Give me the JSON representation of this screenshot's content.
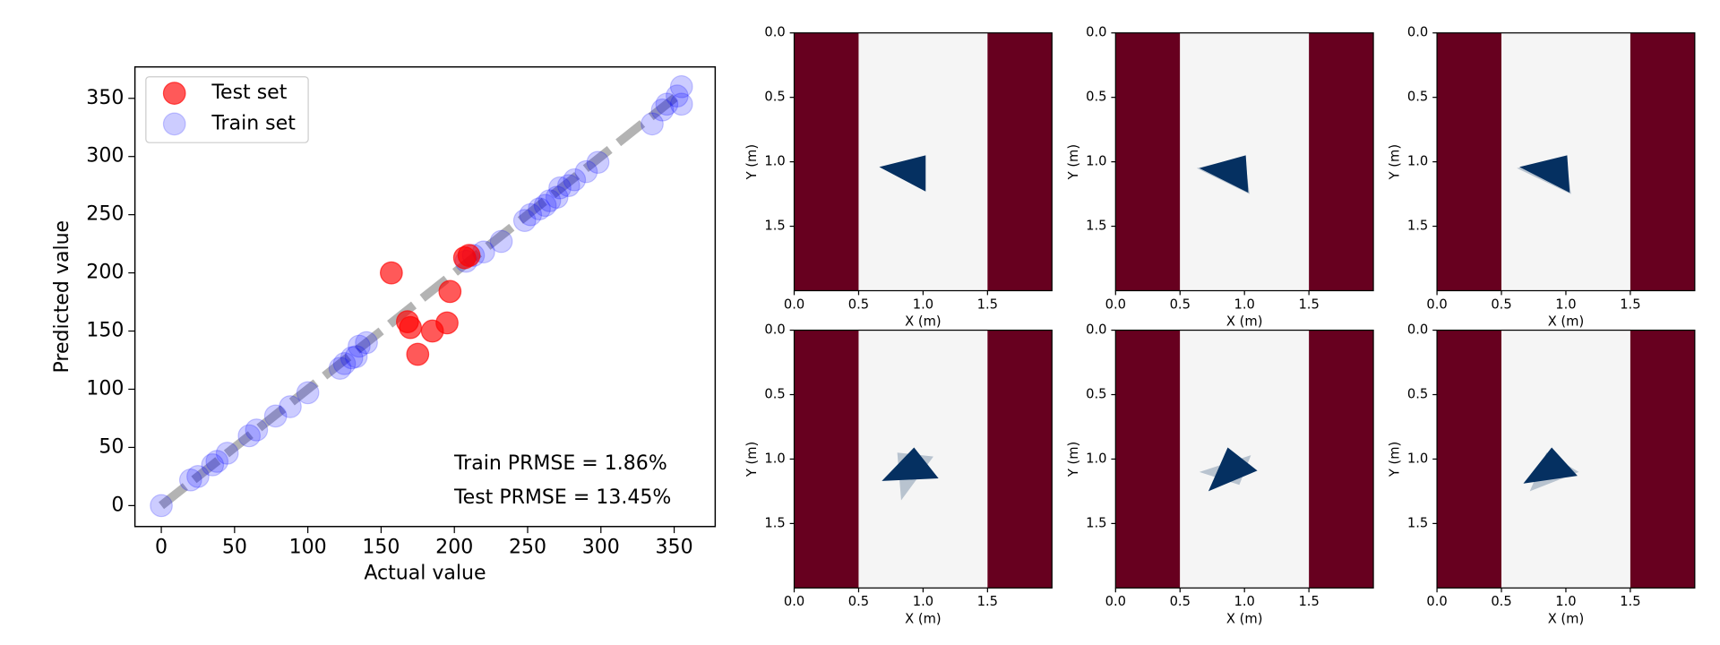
{
  "chart_data": [
    {
      "type": "scatter",
      "xlabel": "Actual value",
      "ylabel": "Predicted value",
      "xlim": [
        -18,
        378
      ],
      "ylim": [
        -18,
        377
      ],
      "xticks": [
        0,
        50,
        100,
        150,
        200,
        250,
        300,
        350
      ],
      "yticks": [
        0,
        50,
        100,
        150,
        200,
        250,
        300,
        350
      ],
      "legend": "upper left",
      "reference_line": {
        "x": [
          0,
          355
        ],
        "y": [
          0,
          355
        ],
        "color": "gray"
      },
      "series": [
        {
          "name": "Test set",
          "color": "red",
          "x": [
            157,
            168,
            170,
            175,
            185,
            195,
            197,
            207,
            210
          ],
          "values": [
            200,
            158,
            153,
            130,
            150,
            157,
            184,
            213,
            215
          ]
        },
        {
          "name": "Train set",
          "color": "blue",
          "x": [
            0,
            20,
            25,
            35,
            38,
            45,
            60,
            65,
            78,
            88,
            100,
            122,
            125,
            130,
            133,
            135,
            140,
            208,
            213,
            220,
            232,
            248,
            252,
            258,
            262,
            265,
            270,
            272,
            278,
            282,
            290,
            298,
            335,
            342,
            345,
            355,
            355,
            352
          ],
          "values": [
            0,
            22,
            25,
            35,
            38,
            45,
            60,
            65,
            77,
            85,
            97,
            118,
            122,
            127,
            128,
            137,
            140,
            210,
            215,
            218,
            227,
            245,
            250,
            255,
            258,
            262,
            265,
            273,
            275,
            280,
            287,
            295,
            328,
            340,
            345,
            345,
            360,
            352
          ]
        }
      ],
      "annotations": [
        "Train PRMSE = 1.86%",
        "Test PRMSE = 13.45%"
      ]
    },
    {
      "type": "image",
      "xlabel": "X (m)",
      "ylabel": "Y (m)",
      "xlim": [
        0,
        2
      ],
      "ylim": [
        2,
        0
      ],
      "xticks": [
        {
          "value": 0,
          "label": "0.0"
        },
        {
          "value": 0.5,
          "label": "0.5"
        },
        {
          "value": 1,
          "label": "1.0"
        },
        {
          "value": 1.5,
          "label": "1.5"
        }
      ],
      "yticks": [
        {
          "value": 0,
          "label": "0.0"
        },
        {
          "value": 0.5,
          "label": "0.5"
        },
        {
          "value": 1,
          "label": "1.0"
        },
        {
          "value": 1.5,
          "label": "1.5"
        }
      ],
      "bands": [
        {
          "x": [
            0,
            0.5
          ],
          "color": "#67001f"
        },
        {
          "x": [
            0.5,
            1.5
          ],
          "color": "#f5f5f5"
        },
        {
          "x": [
            1.5,
            2
          ],
          "color": "#67001f"
        }
      ],
      "shapes": [
        {
          "x": [
            0.66,
            1.02,
            1.02
          ],
          "y": [
            1.04,
            0.95,
            1.23
          ],
          "color": "#053061",
          "alpha": 1
        }
      ]
    },
    {
      "type": "image",
      "xlabel": "X (m)",
      "ylabel": "Y (m)",
      "xlim": [
        0,
        2
      ],
      "ylim": [
        2,
        0
      ],
      "xticks": [
        {
          "value": 0,
          "label": "0.0"
        },
        {
          "value": 0.5,
          "label": "0.5"
        },
        {
          "value": 1,
          "label": "1.0"
        },
        {
          "value": 1.5,
          "label": "1.5"
        }
      ],
      "yticks": [
        {
          "value": 0,
          "label": "0.0"
        },
        {
          "value": 0.5,
          "label": "0.5"
        },
        {
          "value": 1,
          "label": "1.0"
        },
        {
          "value": 1.5,
          "label": "1.5"
        }
      ],
      "bands": [
        {
          "x": [
            0,
            0.5
          ],
          "color": "#67001f"
        },
        {
          "x": [
            0.5,
            1.5
          ],
          "color": "#f5f5f5"
        },
        {
          "x": [
            1.5,
            2
          ],
          "color": "#67001f"
        }
      ],
      "shapes": [
        {
          "x": [
            0.63,
            1.0,
            1.04
          ],
          "y": [
            1.05,
            0.96,
            1.25
          ],
          "color": "#053061",
          "alpha": 0.25
        },
        {
          "x": [
            0.65,
            1.01,
            1.03
          ],
          "y": [
            1.05,
            0.95,
            1.24
          ],
          "color": "#053061",
          "alpha": 1
        }
      ]
    },
    {
      "type": "image",
      "xlabel": "X (m)",
      "ylabel": "Y (m)",
      "xlim": [
        0,
        2
      ],
      "ylim": [
        2,
        0
      ],
      "xticks": [
        {
          "value": 0,
          "label": "0.0"
        },
        {
          "value": 0.5,
          "label": "0.5"
        },
        {
          "value": 1,
          "label": "1.0"
        },
        {
          "value": 1.5,
          "label": "1.5"
        }
      ],
      "yticks": [
        {
          "value": 0,
          "label": "0.0"
        },
        {
          "value": 0.5,
          "label": "0.5"
        },
        {
          "value": 1,
          "label": "1.0"
        },
        {
          "value": 1.5,
          "label": "1.5"
        }
      ],
      "bands": [
        {
          "x": [
            0,
            0.5
          ],
          "color": "#67001f"
        },
        {
          "x": [
            0.5,
            1.5
          ],
          "color": "#f5f5f5"
        },
        {
          "x": [
            1.5,
            2
          ],
          "color": "#67001f"
        }
      ],
      "shapes": [
        {
          "x": [
            0.62,
            1.0,
            1.04
          ],
          "y": [
            1.05,
            0.96,
            1.25
          ],
          "color": "#053061",
          "alpha": 0.25
        },
        {
          "x": [
            0.64,
            1.01,
            1.03
          ],
          "y": [
            1.04,
            0.95,
            1.24
          ],
          "color": "#053061",
          "alpha": 1
        }
      ]
    },
    {
      "type": "image",
      "xlabel": "X (m)",
      "ylabel": "Y (m)",
      "xlim": [
        0,
        2
      ],
      "ylim": [
        2,
        0
      ],
      "xticks": [
        {
          "value": 0,
          "label": "0.0"
        },
        {
          "value": 0.5,
          "label": "0.5"
        },
        {
          "value": 1,
          "label": "1.0"
        },
        {
          "value": 1.5,
          "label": "1.5"
        }
      ],
      "yticks": [
        {
          "value": 0,
          "label": "0.0"
        },
        {
          "value": 0.5,
          "label": "0.5"
        },
        {
          "value": 1,
          "label": "1.0"
        },
        {
          "value": 1.5,
          "label": "1.5"
        }
      ],
      "bands": [
        {
          "x": [
            0,
            0.5
          ],
          "color": "#67001f"
        },
        {
          "x": [
            0.5,
            1.5
          ],
          "color": "#f5f5f5"
        },
        {
          "x": [
            1.5,
            2
          ],
          "color": "#67001f"
        }
      ],
      "shapes": [
        {
          "x": [
            0.83,
            0.8,
            1.08
          ],
          "y": [
            1.32,
            0.95,
            0.98
          ],
          "color": "#053061",
          "alpha": 0.25
        },
        {
          "x": [
            0.68,
            0.93,
            1.12
          ],
          "y": [
            1.17,
            0.91,
            1.15
          ],
          "color": "#053061",
          "alpha": 1
        }
      ]
    },
    {
      "type": "image",
      "xlabel": "X (m)",
      "ylabel": "Y (m)",
      "xlim": [
        0,
        2
      ],
      "ylim": [
        2,
        0
      ],
      "xticks": [
        {
          "value": 0,
          "label": "0.0"
        },
        {
          "value": 0.5,
          "label": "0.5"
        },
        {
          "value": 1,
          "label": "1.0"
        },
        {
          "value": 1.5,
          "label": "1.5"
        }
      ],
      "yticks": [
        {
          "value": 0,
          "label": "0.0"
        },
        {
          "value": 0.5,
          "label": "0.5"
        },
        {
          "value": 1,
          "label": "1.0"
        },
        {
          "value": 1.5,
          "label": "1.5"
        }
      ],
      "bands": [
        {
          "x": [
            0,
            0.5
          ],
          "color": "#67001f"
        },
        {
          "x": [
            0.5,
            1.5
          ],
          "color": "#f5f5f5"
        },
        {
          "x": [
            1.5,
            2
          ],
          "color": "#67001f"
        }
      ],
      "shapes": [
        {
          "x": [
            0.65,
            1.05,
            0.96
          ],
          "y": [
            1.1,
            0.97,
            1.2
          ],
          "color": "#053061",
          "alpha": 0.25
        },
        {
          "x": [
            0.72,
            0.87,
            1.1
          ],
          "y": [
            1.25,
            0.91,
            1.09
          ],
          "color": "#053061",
          "alpha": 1
        }
      ]
    },
    {
      "type": "image",
      "xlabel": "X (m)",
      "ylabel": "Y (m)",
      "xlim": [
        0,
        2
      ],
      "ylim": [
        2,
        0
      ],
      "xticks": [
        {
          "value": 0,
          "label": "0.0"
        },
        {
          "value": 0.5,
          "label": "0.5"
        },
        {
          "value": 1,
          "label": "1.0"
        },
        {
          "value": 1.5,
          "label": "1.5"
        }
      ],
      "yticks": [
        {
          "value": 0,
          "label": "0.0"
        },
        {
          "value": 0.5,
          "label": "0.5"
        },
        {
          "value": 1,
          "label": "1.0"
        },
        {
          "value": 1.5,
          "label": "1.5"
        }
      ],
      "bands": [
        {
          "x": [
            0,
            0.5
          ],
          "color": "#67001f"
        },
        {
          "x": [
            0.5,
            1.5
          ],
          "color": "#f5f5f5"
        },
        {
          "x": [
            1.5,
            2
          ],
          "color": "#67001f"
        }
      ],
      "shapes": [
        {
          "x": [
            0.72,
            0.85,
            1.1
          ],
          "y": [
            1.25,
            0.95,
            1.1
          ],
          "color": "#053061",
          "alpha": 0.25
        },
        {
          "x": [
            0.67,
            0.89,
            1.09
          ],
          "y": [
            1.19,
            0.91,
            1.13
          ],
          "color": "#053061",
          "alpha": 1
        }
      ]
    }
  ]
}
